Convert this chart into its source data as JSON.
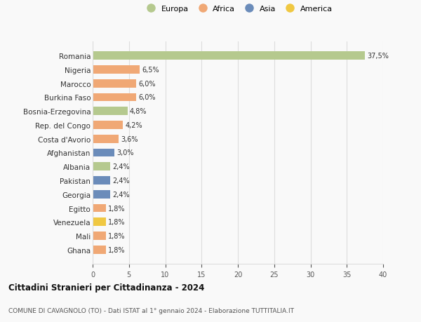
{
  "categories": [
    "Romania",
    "Nigeria",
    "Marocco",
    "Burkina Faso",
    "Bosnia-Erzegovina",
    "Rep. del Congo",
    "Costa d'Avorio",
    "Afghanistan",
    "Albania",
    "Pakistan",
    "Georgia",
    "Egitto",
    "Venezuela",
    "Mali",
    "Ghana"
  ],
  "values": [
    37.5,
    6.5,
    6.0,
    6.0,
    4.8,
    4.2,
    3.6,
    3.0,
    2.4,
    2.4,
    2.4,
    1.8,
    1.8,
    1.8,
    1.8
  ],
  "labels": [
    "37,5%",
    "6,5%",
    "6,0%",
    "6,0%",
    "4,8%",
    "4,2%",
    "3,6%",
    "3,0%",
    "2,4%",
    "2,4%",
    "2,4%",
    "1,8%",
    "1,8%",
    "1,8%",
    "1,8%"
  ],
  "colors": [
    "#b5c98e",
    "#f0a875",
    "#f0a875",
    "#f0a875",
    "#b5c98e",
    "#f0a875",
    "#f0a875",
    "#6b8cba",
    "#b5c98e",
    "#6b8cba",
    "#6b8cba",
    "#f0a875",
    "#f0c842",
    "#f0a875",
    "#f0a875"
  ],
  "legend_labels": [
    "Europa",
    "Africa",
    "Asia",
    "America"
  ],
  "legend_colors": [
    "#b5c98e",
    "#f0a875",
    "#6b8cba",
    "#f0c842"
  ],
  "xlim": [
    0,
    40
  ],
  "xticks": [
    0,
    5,
    10,
    15,
    20,
    25,
    30,
    35,
    40
  ],
  "title": "Cittadini Stranieri per Cittadinanza - 2024",
  "subtitle": "COMUNE DI CAVAGNOLO (TO) - Dati ISTAT al 1° gennaio 2024 - Elaborazione TUTTITALIA.IT",
  "background_color": "#f9f9f9",
  "grid_color": "#dddddd"
}
